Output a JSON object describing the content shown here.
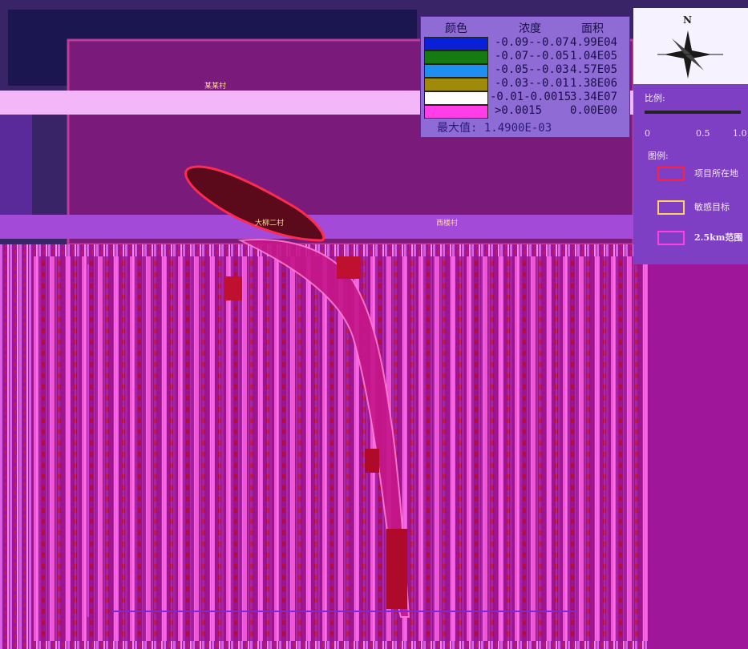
{
  "legend": {
    "col_color": "颜色",
    "col_conc": "浓度",
    "col_area": "面积",
    "rows": [
      {
        "range": "-0.09--0.07",
        "area": "4.99E04",
        "color": "#0a1fd8"
      },
      {
        "range": "-0.07--0.05",
        "area": "1.04E05",
        "color": "#167a12"
      },
      {
        "range": "-0.05--0.03",
        "area": "4.57E05",
        "color": "#1e8ff0"
      },
      {
        "range": "-0.03--0.01",
        "area": "1.38E06",
        "color": "#a08a0a"
      },
      {
        "range": "-0.01-0.0015",
        "area": "3.34E07",
        "color": "#ffffff"
      },
      {
        "range": ">0.0015",
        "area": "0.00E00",
        "color": "#ff3ee8"
      }
    ],
    "max_label": "最大值:",
    "max_value": "1.4900E-03"
  },
  "side": {
    "north": "N",
    "scale_label": "比例:",
    "scale_ticks": [
      "0",
      "0.5",
      "1.0"
    ],
    "legend_title": "图例:",
    "items": [
      {
        "label": "项目所在地"
      },
      {
        "label": "敏感目标"
      },
      {
        "label": "2.5km范围"
      }
    ]
  },
  "map": {
    "place_labels": [
      "某某村",
      "大柳二村",
      "西楼村"
    ]
  }
}
